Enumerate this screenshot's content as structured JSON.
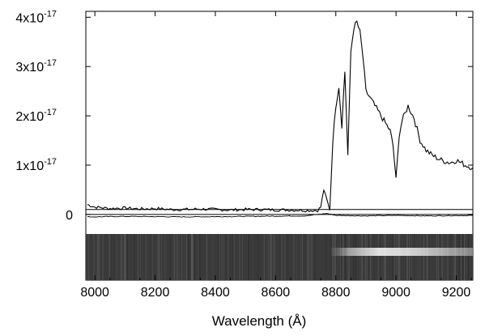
{
  "chart_data": {
    "type": "line",
    "title": "",
    "xlabel": "Wavelength (Å)",
    "ylabel": "",
    "xlim": [
      7970,
      9255
    ],
    "ylim": [
      -2e-18,
      4.12e-17
    ],
    "xticks": [
      8000,
      8200,
      8400,
      8600,
      8800,
      9000,
      9200
    ],
    "yticks": [
      {
        "value": 0,
        "base": "0",
        "exp": ""
      },
      {
        "value": 1e-17,
        "base": "1x10",
        "exp": "-17"
      },
      {
        "value": 2e-17,
        "base": "2x10",
        "exp": "-17"
      },
      {
        "value": 3e-17,
        "base": "3x10",
        "exp": "-17"
      },
      {
        "value": 4e-17,
        "base": "4x10",
        "exp": "-17"
      }
    ],
    "grid": false,
    "legend": "none",
    "series": [
      {
        "role": "flux",
        "color": "#000000",
        "x": [
          7975,
          8000,
          8050,
          8100,
          8150,
          8200,
          8250,
          8300,
          8350,
          8400,
          8450,
          8500,
          8550,
          8600,
          8650,
          8700,
          8740,
          8750,
          8760,
          8770,
          8780,
          8790,
          8800,
          8810,
          8820,
          8830,
          8840,
          8850,
          8860,
          8870,
          8880,
          8890,
          8900,
          8920,
          8940,
          8960,
          8980,
          8990,
          9000,
          9010,
          9020,
          9040,
          9060,
          9080,
          9100,
          9120,
          9150,
          9180,
          9200,
          9230,
          9255
        ],
        "y": [
          2e-18,
          1.5e-18,
          1.2e-18,
          1.3e-18,
          1.1e-18,
          1.2e-18,
          1e-18,
          1e-18,
          1.1e-18,
          1e-18,
          9e-19,
          1e-18,
          1e-18,
          9e-19,
          9e-19,
          8e-19,
          8e-19,
          1.5e-18,
          5e-18,
          3e-18,
          1e-18,
          1.5e-17,
          2.2e-17,
          2.6e-17,
          1.8e-17,
          2.9e-17,
          1.2e-17,
          3.3e-17,
          3.8e-17,
          3.9e-17,
          3.7e-17,
          3.2e-17,
          2.5e-17,
          2.3e-17,
          2.1e-17,
          1.9e-17,
          1.7e-17,
          1.4e-17,
          7e-18,
          1.6e-17,
          1.9e-17,
          2.2e-17,
          1.95e-17,
          1.5e-17,
          1.3e-17,
          1.2e-17,
          1.1e-17,
          1.05e-17,
          1.1e-17,
          1e-17,
          9.5e-18
        ]
      },
      {
        "role": "error",
        "color": "#000000",
        "x": [
          7975,
          8100,
          8300,
          8500,
          8700,
          8770,
          8800,
          8900,
          9000,
          9100,
          9255
        ],
        "y": [
          -5e-19,
          -4e-19,
          -5e-19,
          -4e-19,
          -3e-19,
          2e-19,
          -2e-19,
          -3e-19,
          -2e-19,
          -3e-19,
          -2e-19
        ]
      }
    ],
    "reference_lines": [
      {
        "axis": "y",
        "value": 1e-18
      },
      {
        "axis": "y",
        "value": 0
      }
    ],
    "spectrum_strip": {
      "background": "#3a3a3a",
      "emission_x_range": [
        8780,
        9255
      ],
      "emission_peak_x": [
        8840,
        8900,
        9040
      ]
    }
  }
}
